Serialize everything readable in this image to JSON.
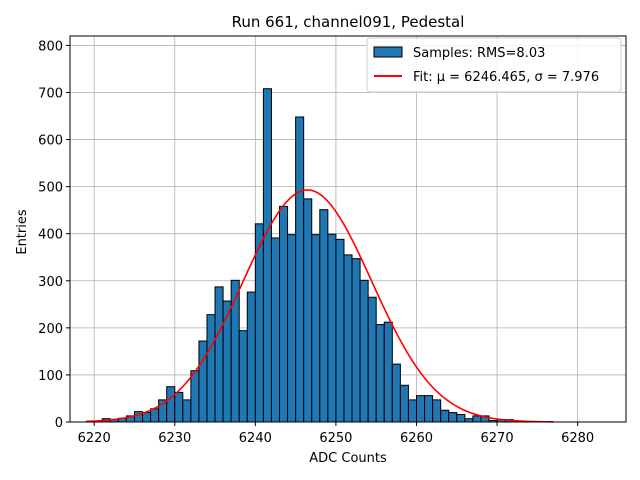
{
  "chart_data": {
    "type": "bar",
    "title": "Run 661, channel091, Pedestal",
    "xlabel": "ADC Counts",
    "ylabel": "Entries",
    "xlim": [
      6217,
      6286
    ],
    "ylim": [
      0,
      820
    ],
    "xticks": [
      6220,
      6230,
      6240,
      6250,
      6260,
      6270,
      6280
    ],
    "yticks": [
      0,
      100,
      200,
      300,
      400,
      500,
      600,
      700,
      800
    ],
    "grid": true,
    "legend_position": "top-right",
    "bin_width": 1,
    "bins": {
      "name": "Samples: RMS=8.03",
      "color": "#1f77b4",
      "edgecolor": "#000000",
      "left_edges": [
        6219,
        6220,
        6221,
        6222,
        6223,
        6224,
        6225,
        6226,
        6227,
        6228,
        6229,
        6230,
        6231,
        6232,
        6233,
        6234,
        6235,
        6236,
        6237,
        6238,
        6239,
        6240,
        6241,
        6242,
        6243,
        6244,
        6245,
        6246,
        6247,
        6248,
        6249,
        6250,
        6251,
        6252,
        6253,
        6254,
        6255,
        6256,
        6257,
        6258,
        6259,
        6260,
        6261,
        6262,
        6263,
        6264,
        6265,
        6266,
        6267,
        6268,
        6269,
        6270,
        6271,
        6272,
        6273,
        6274,
        6275,
        6276
      ],
      "counts": [
        1,
        2,
        7,
        5,
        8,
        13,
        22,
        20,
        28,
        47,
        75,
        63,
        47,
        109,
        172,
        228,
        287,
        257,
        301,
        194,
        276,
        421,
        708,
        391,
        458,
        398,
        648,
        474,
        398,
        451,
        399,
        388,
        355,
        347,
        301,
        265,
        207,
        212,
        123,
        78,
        47,
        56,
        56,
        47,
        25,
        20,
        16,
        7,
        13,
        13,
        3,
        5,
        5,
        1,
        0,
        0,
        0,
        0
      ]
    },
    "fit": {
      "name": "Fit: μ = 6246.465, σ = 7.976",
      "mu": 6246.465,
      "sigma": 7.976,
      "peak": 493,
      "x_range": [
        6219,
        6277
      ],
      "color": "#ff0000"
    }
  }
}
